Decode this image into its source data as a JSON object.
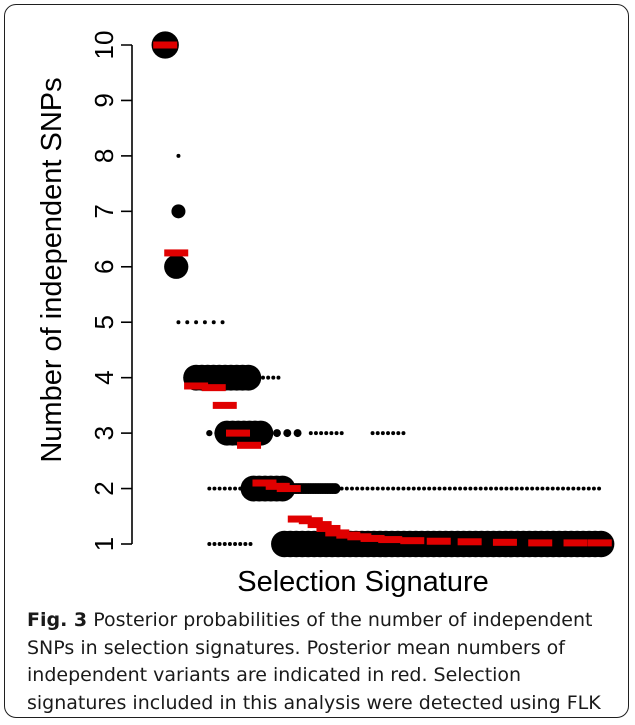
{
  "chart_data": {
    "type": "scatter",
    "title": "",
    "xlabel": "Selection Signature",
    "ylabel": "Number of independent SNPs",
    "ylim": [
      1,
      10
    ],
    "yticks": [
      "1",
      "2",
      "3",
      "4",
      "5",
      "6",
      "7",
      "8",
      "9",
      "10"
    ],
    "x_range": [
      1,
      200
    ],
    "grid": false,
    "series": [
      {
        "name": "",
        "description_key": "posterior_probability_dots",
        "color": "#000000",
        "points": [
          {
            "x": 2,
            "y": 10,
            "prob": 0.95
          },
          {
            "x": 8,
            "y": 8,
            "prob": 0.02
          },
          {
            "x": 8,
            "y": 7,
            "prob": 0.25
          },
          {
            "x": 7,
            "y": 6,
            "prob": 0.75
          },
          {
            "x": 8,
            "y": 5,
            "prob": 0.02
          },
          {
            "x": 12,
            "y": 5,
            "prob": 0.02
          },
          {
            "x": 16,
            "y": 5,
            "prob": 0.02
          },
          {
            "x": 20,
            "y": 5,
            "prob": 0.02
          },
          {
            "x": 24,
            "y": 5,
            "prob": 0.02
          },
          {
            "x": 28,
            "y": 5,
            "prob": 0.02
          }
        ],
        "clusters": [
          {
            "y": 4,
            "x_from": 16,
            "x_to": 40,
            "prob": 0.85
          },
          {
            "y": 4,
            "x_from": 44,
            "x_to": 54,
            "prob": 0.02
          },
          {
            "y": 3,
            "x_from": 22,
            "x_to": 26,
            "prob": 0.05
          },
          {
            "y": 3,
            "x_from": 30,
            "x_to": 46,
            "prob": 0.8
          },
          {
            "y": 3,
            "x_from": 48,
            "x_to": 64,
            "prob": 0.08
          },
          {
            "y": 3,
            "x_from": 68,
            "x_to": 84,
            "prob": 0.02
          },
          {
            "y": 3,
            "x_from": 96,
            "x_to": 112,
            "prob": 0.02
          },
          {
            "y": 2,
            "x_from": 22,
            "x_to": 36,
            "prob": 0.02
          },
          {
            "y": 2,
            "x_from": 42,
            "x_to": 56,
            "prob": 0.85
          },
          {
            "y": 2,
            "x_from": 58,
            "x_to": 80,
            "prob": 0.15
          },
          {
            "y": 2,
            "x_from": 82,
            "x_to": 200,
            "prob": 0.02
          },
          {
            "y": 1,
            "x_from": 22,
            "x_to": 42,
            "prob": 0.02
          },
          {
            "y": 1,
            "x_from": 56,
            "x_to": 200,
            "prob": 0.9
          }
        ]
      },
      {
        "name": "",
        "description_key": "posterior_mean",
        "color": "#e00000",
        "points": [
          {
            "x": 2,
            "y": 10.0
          },
          {
            "x": 7,
            "y": 6.25
          },
          {
            "x": 16,
            "y": 3.85
          },
          {
            "x": 24,
            "y": 3.82
          },
          {
            "x": 29,
            "y": 3.5
          },
          {
            "x": 35,
            "y": 3.0
          },
          {
            "x": 40,
            "y": 2.78
          },
          {
            "x": 47,
            "y": 2.1
          },
          {
            "x": 53,
            "y": 2.04
          },
          {
            "x": 58,
            "y": 2.0
          },
          {
            "x": 63,
            "y": 1.45
          },
          {
            "x": 68,
            "y": 1.42
          },
          {
            "x": 72,
            "y": 1.35
          },
          {
            "x": 76,
            "y": 1.28
          },
          {
            "x": 80,
            "y": 1.2
          },
          {
            "x": 85,
            "y": 1.16
          },
          {
            "x": 90,
            "y": 1.13
          },
          {
            "x": 96,
            "y": 1.1
          },
          {
            "x": 104,
            "y": 1.08
          },
          {
            "x": 114,
            "y": 1.06
          },
          {
            "x": 126,
            "y": 1.05
          },
          {
            "x": 140,
            "y": 1.04
          },
          {
            "x": 156,
            "y": 1.03
          },
          {
            "x": 172,
            "y": 1.02
          },
          {
            "x": 188,
            "y": 1.02
          },
          {
            "x": 199,
            "y": 1.02
          }
        ]
      }
    ]
  },
  "caption": {
    "label": "Fig. 3",
    "text": " Posterior probabilities of the number of independent SNPs in selection signatures. Posterior mean numbers of independent variants are indicated in red. Selection signatures included in this analysis were detected using FLK and all French breeds"
  }
}
